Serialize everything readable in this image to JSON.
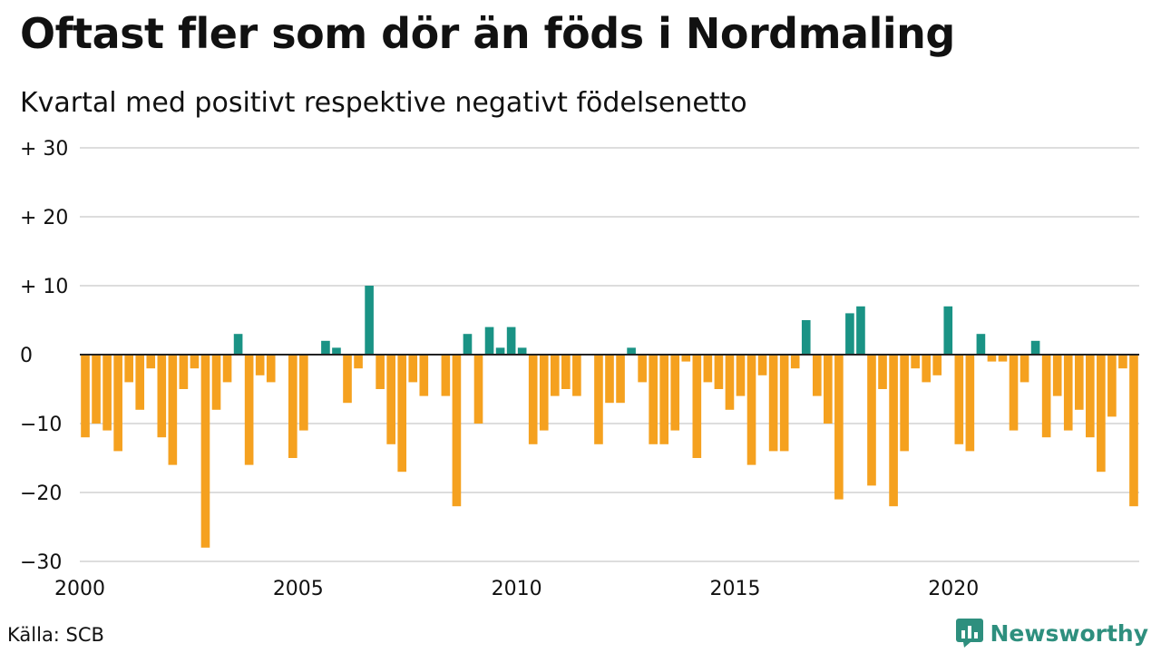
{
  "title": "Oftast fler som dör än föds i Nordmaling",
  "subtitle": "Kvartal med positivt respektive negativt födelsenetto",
  "source": "Källa: SCB",
  "brand": {
    "name": "Newsworthy",
    "icon": "newsworthy-logo-icon"
  },
  "colors": {
    "positive": "#1a9385",
    "negative": "#f5a11f",
    "grid": "#dddddd",
    "zero_line": "#222222"
  },
  "chart_data": {
    "type": "bar",
    "title": "Oftast fler som dör än föds i Nordmaling",
    "subtitle": "Kvartal med positivt respektive negativt födelsenetto",
    "ylim": [
      -30,
      30
    ],
    "yticks": [
      {
        "value": 30,
        "label": "+ 30"
      },
      {
        "value": 20,
        "label": "+ 20"
      },
      {
        "value": 10,
        "label": "+ 10"
      },
      {
        "value": 0,
        "label": "0"
      },
      {
        "value": -10,
        "label": "−10"
      },
      {
        "value": -20,
        "label": "−20"
      },
      {
        "value": -30,
        "label": "−30"
      }
    ],
    "xticks": [
      {
        "year": 2000,
        "label": "2000"
      },
      {
        "year": 2005,
        "label": "2005"
      },
      {
        "year": 2010,
        "label": "2010"
      },
      {
        "year": 2015,
        "label": "2015"
      },
      {
        "year": 2020,
        "label": "2020"
      }
    ],
    "first_quarter": "2000 Q1",
    "last_quarter": "2024 Q1",
    "grid": true,
    "values": [
      -12,
      -10,
      -11,
      -14,
      -4,
      -8,
      -2,
      -12,
      -16,
      -5,
      -2,
      -28,
      -8,
      -4,
      3,
      -16,
      -3,
      -4,
      0,
      -15,
      -11,
      0,
      2,
      1,
      -7,
      -2,
      10,
      -5,
      -13,
      -17,
      -4,
      -6,
      0,
      -6,
      -22,
      3,
      -10,
      4,
      1,
      4,
      1,
      -13,
      -11,
      -6,
      -5,
      -6,
      0,
      -13,
      -7,
      -7,
      1,
      -4,
      -13,
      -13,
      -11,
      -1,
      -15,
      -4,
      -5,
      -8,
      -6,
      -16,
      -3,
      -14,
      -14,
      -2,
      5,
      -6,
      -10,
      -21,
      6,
      7,
      -19,
      -5,
      -22,
      -14,
      -2,
      -4,
      -3,
      7,
      -13,
      -14,
      3,
      -1,
      -1,
      -11,
      -4,
      2,
      -12,
      -6,
      -11,
      -8,
      -12,
      -17,
      -9,
      -2,
      -22
    ]
  }
}
